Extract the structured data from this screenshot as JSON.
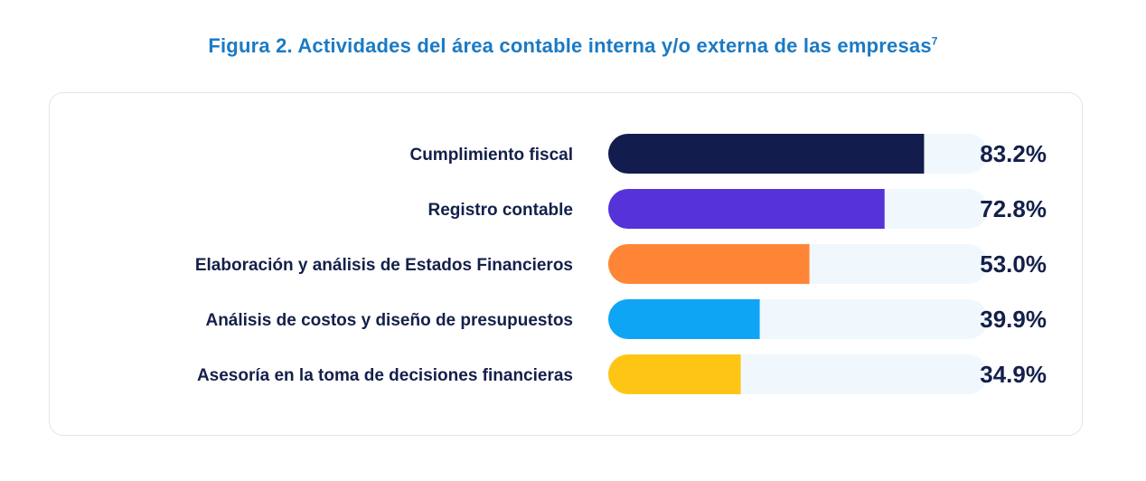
{
  "figure": {
    "title": "Figura 2. Actividades del área contable interna y/o externa de las empresas",
    "footnote_mark": "7"
  },
  "colors": {
    "title": "#1b7ac4",
    "text": "#14204a",
    "track": "#f0f7fd",
    "bars": [
      "#121d4d",
      "#5533d9",
      "#ff8536",
      "#0ea5f4",
      "#fec515"
    ]
  },
  "chart_data": {
    "type": "bar",
    "orientation": "horizontal",
    "categories": [
      "Cumplimiento fiscal",
      "Registro contable",
      "Elaboración y análisis de Estados Financieros",
      "Análisis de costos y diseño de presupuestos",
      "Asesoría en la toma de decisiones financieras"
    ],
    "values": [
      83.2,
      72.8,
      53.0,
      39.9,
      34.9
    ],
    "value_labels": [
      "83.2%",
      "72.8%",
      "53.0%",
      "39.9%",
      "34.9%"
    ],
    "xlim": [
      0,
      100
    ],
    "grid": false,
    "legend": false
  }
}
